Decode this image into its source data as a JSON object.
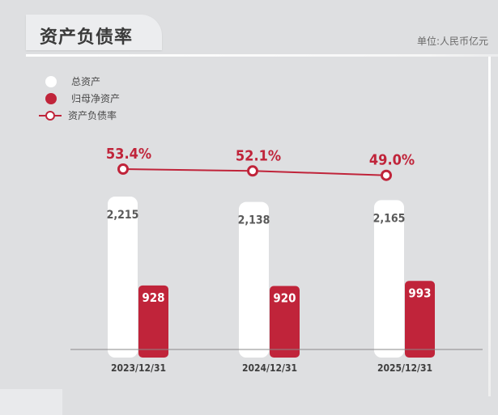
{
  "header": {
    "title": "资产负债率",
    "unit": "单位:人民币亿元"
  },
  "colors": {
    "total_assets": "#ffffff",
    "net_assets": "#c0243a",
    "ratio_line": "#c0243a",
    "value_dark": "#5a5a5a",
    "value_light": "#ffffff",
    "baseline": "#8a8a8a"
  },
  "chart_data": {
    "type": "bar",
    "categories": [
      "2023/12/31",
      "2024/12/31",
      "2025/12/31"
    ],
    "series": [
      {
        "name": "总资产",
        "values": [
          2215,
          2138,
          2165
        ],
        "labels": [
          "2,215",
          "2,138",
          "2,165"
        ]
      },
      {
        "name": "归母净资产",
        "values": [
          928,
          920,
          993
        ],
        "labels": [
          "928",
          "920",
          "993"
        ]
      }
    ],
    "line_series": {
      "name": "资产负债率",
      "values": [
        53.4,
        52.1,
        49.0
      ],
      "labels": [
        "53.4%",
        "52.1%",
        "49.0%"
      ]
    },
    "legend": [
      "总资产",
      "归母净资产",
      "资产负债率"
    ],
    "legend_position": "top-left",
    "grid": false
  }
}
